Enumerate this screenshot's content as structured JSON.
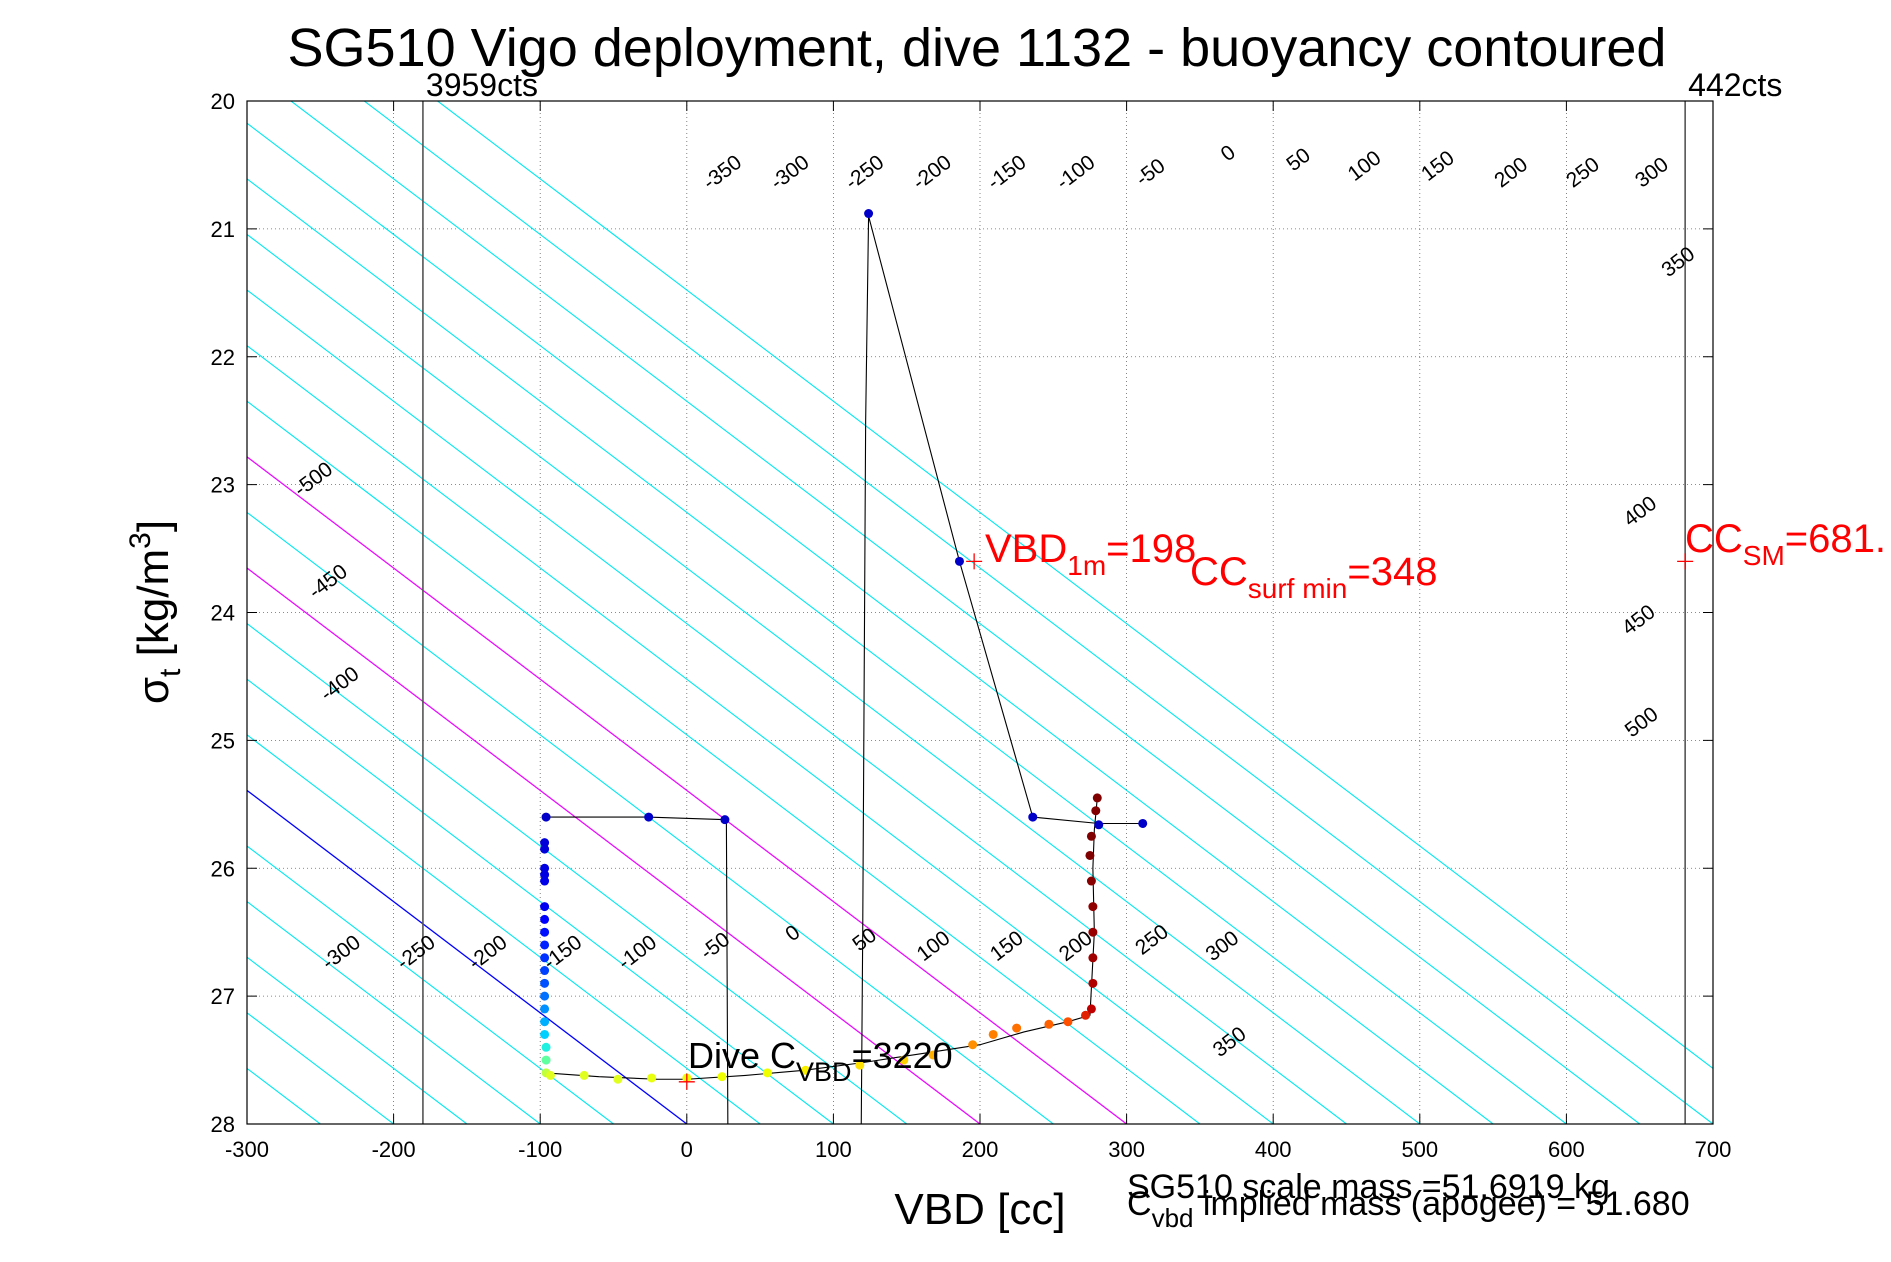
{
  "chart_data": {
    "type": "scatter",
    "title": "SG510 Vigo deployment, dive 1132 - buoyancy contoured",
    "xlabel": "VBD [cc]",
    "ylabel": {
      "main": "σ",
      "sub": "t",
      "units_pre": " [kg/m",
      "units_sup": "3",
      "units_post": "]"
    },
    "xlim": [
      -300,
      700
    ],
    "ylim": [
      20,
      28
    ],
    "y_reversed": true,
    "x_ticks": [
      "-300",
      "-200",
      "-100",
      "0",
      "100",
      "200",
      "300",
      "400",
      "500",
      "600",
      "700"
    ],
    "y_ticks": [
      "20",
      "21",
      "22",
      "23",
      "24",
      "25",
      "26",
      "27",
      "28"
    ],
    "grid": true,
    "contour_slope_cc_per_sigma": 115,
    "cyan_contours": [
      -650,
      -600,
      -550,
      -500,
      -450,
      -400,
      -350,
      -300,
      -250,
      -200,
      -150,
      -100,
      -50,
      50,
      100,
      150,
      200,
      250,
      300,
      350,
      400,
      450,
      500,
      550,
      600,
      650,
      700,
      750
    ],
    "magenta_contours": [
      200,
      300
    ],
    "blue_contour": 0,
    "blue_contour_offset": 0,
    "contour_labels_top": [
      {
        "text": "-350",
        "x": 27,
        "y": 20.6
      },
      {
        "text": "-300",
        "x": 73,
        "y": 20.6
      },
      {
        "text": "-250",
        "x": 124,
        "y": 20.6
      },
      {
        "text": "-200",
        "x": 170,
        "y": 20.6
      },
      {
        "text": "-150",
        "x": 221,
        "y": 20.6
      },
      {
        "text": "-100",
        "x": 268,
        "y": 20.6
      },
      {
        "text": "-50",
        "x": 319,
        "y": 20.6
      },
      {
        "text": "0",
        "x": 372,
        "y": 20.45
      },
      {
        "text": "50",
        "x": 420,
        "y": 20.5
      },
      {
        "text": "100",
        "x": 465,
        "y": 20.55
      },
      {
        "text": "150",
        "x": 515,
        "y": 20.55
      },
      {
        "text": "200",
        "x": 565,
        "y": 20.6
      },
      {
        "text": "250",
        "x": 614,
        "y": 20.6
      },
      {
        "text": "300",
        "x": 661,
        "y": 20.6
      },
      {
        "text": "350",
        "x": 679,
        "y": 21.3
      }
    ],
    "contour_labels_mid": [
      {
        "text": "-500",
        "x": -252,
        "y": 23.0
      },
      {
        "text": "-450",
        "x": -242,
        "y": 23.8
      },
      {
        "text": "-400",
        "x": -234,
        "y": 24.6
      },
      {
        "text": "400",
        "x": 653,
        "y": 23.25
      },
      {
        "text": "450",
        "x": 652,
        "y": 24.1
      },
      {
        "text": "500",
        "x": 654,
        "y": 24.9
      }
    ],
    "contour_labels_bottom": [
      {
        "text": "-300",
        "x": -233,
        "y": 26.7
      },
      {
        "text": "-250",
        "x": -182,
        "y": 26.7
      },
      {
        "text": "-200",
        "x": -133,
        "y": 26.7
      },
      {
        "text": "-150",
        "x": -82,
        "y": 26.7
      },
      {
        "text": "-100",
        "x": -31,
        "y": 26.7
      },
      {
        "text": "-50",
        "x": 22,
        "y": 26.65
      },
      {
        "text": "0",
        "x": 75,
        "y": 26.55
      },
      {
        "text": "50",
        "x": 124,
        "y": 26.6
      },
      {
        "text": "100",
        "x": 171,
        "y": 26.65
      },
      {
        "text": "150",
        "x": 221,
        "y": 26.65
      },
      {
        "text": "200",
        "x": 268,
        "y": 26.65
      },
      {
        "text": "250",
        "x": 320,
        "y": 26.6
      },
      {
        "text": "300",
        "x": 368,
        "y": 26.65
      },
      {
        "text": "350",
        "x": 373,
        "y": 27.4
      }
    ],
    "vertical_lines": [
      {
        "x": -180,
        "label": "3959cts"
      },
      {
        "x": 681,
        "label": "442cts"
      }
    ],
    "black_trace": [
      [
        -97,
        25.6
      ],
      [
        -27,
        25.6
      ],
      [
        27,
        25.62
      ],
      [
        28,
        28
      ]
    ],
    "black_trace2": [
      [
        119,
        28
      ],
      [
        120,
        26.5
      ],
      [
        122,
        22.5
      ],
      [
        124,
        20.9
      ],
      [
        186,
        23.6
      ],
      [
        236,
        25.6
      ],
      [
        281,
        25.65
      ],
      [
        311,
        25.65
      ]
    ],
    "bottom_trace": [
      [
        -97,
        27.6
      ],
      [
        -60,
        27.63
      ],
      [
        -20,
        27.65
      ],
      [
        0,
        27.65
      ],
      [
        40,
        27.62
      ],
      [
        80,
        27.58
      ],
      [
        120,
        27.52
      ],
      [
        160,
        27.45
      ],
      [
        200,
        27.38
      ],
      [
        230,
        27.28
      ],
      [
        260,
        27.2
      ],
      [
        275,
        27.15
      ],
      [
        278,
        26.5
      ],
      [
        277,
        26.0
      ],
      [
        278,
        25.7
      ],
      [
        280,
        25.45
      ]
    ],
    "points": [
      {
        "x": -96,
        "y": 25.6,
        "c": "#0000c8"
      },
      {
        "x": -26,
        "y": 25.6,
        "c": "#0000c8"
      },
      {
        "x": 26,
        "y": 25.62,
        "c": "#0000c8"
      },
      {
        "x": 124,
        "y": 20.88,
        "c": "#0000c8"
      },
      {
        "x": 186,
        "y": 23.6,
        "c": "#0000c8"
      },
      {
        "x": 236,
        "y": 25.6,
        "c": "#0000c8"
      },
      {
        "x": 281,
        "y": 25.66,
        "c": "#0000c8"
      },
      {
        "x": 311,
        "y": 25.65,
        "c": "#0000c8"
      },
      {
        "x": -97,
        "y": 25.8,
        "c": "#0000d8"
      },
      {
        "x": -97,
        "y": 25.85,
        "c": "#0000d8"
      },
      {
        "x": -97,
        "y": 26.0,
        "c": "#0000e0"
      },
      {
        "x": -97,
        "y": 26.05,
        "c": "#0000e0"
      },
      {
        "x": -97,
        "y": 26.1,
        "c": "#0000e8"
      },
      {
        "x": -97,
        "y": 26.3,
        "c": "#0000f0"
      },
      {
        "x": -97,
        "y": 26.4,
        "c": "#0000ff"
      },
      {
        "x": -97,
        "y": 26.5,
        "c": "#0010ff"
      },
      {
        "x": -97,
        "y": 26.6,
        "c": "#0020ff"
      },
      {
        "x": -97,
        "y": 26.7,
        "c": "#0030ff"
      },
      {
        "x": -97,
        "y": 26.8,
        "c": "#0040ff"
      },
      {
        "x": -97,
        "y": 26.9,
        "c": "#0050ff"
      },
      {
        "x": -97,
        "y": 27.0,
        "c": "#0070ff"
      },
      {
        "x": -97,
        "y": 27.1,
        "c": "#0090ff"
      },
      {
        "x": -97,
        "y": 27.2,
        "c": "#00b0ff"
      },
      {
        "x": -97,
        "y": 27.3,
        "c": "#00d0ff"
      },
      {
        "x": -96,
        "y": 27.4,
        "c": "#20f0e0"
      },
      {
        "x": -96,
        "y": 27.5,
        "c": "#60ffa0"
      },
      {
        "x": -96,
        "y": 27.6,
        "c": "#c0ff40"
      },
      {
        "x": -93,
        "y": 27.62,
        "c": "#e0ff20"
      },
      {
        "x": -70,
        "y": 27.62,
        "c": "#e0ff20"
      },
      {
        "x": -47,
        "y": 27.65,
        "c": "#e0ff20"
      },
      {
        "x": -24,
        "y": 27.64,
        "c": "#e8ff10"
      },
      {
        "x": 0,
        "y": 27.64,
        "c": "#f0ff00"
      },
      {
        "x": 24,
        "y": 27.63,
        "c": "#f0ff00"
      },
      {
        "x": 55,
        "y": 27.6,
        "c": "#f0ff00"
      },
      {
        "x": 81,
        "y": 27.58,
        "c": "#f8f000"
      },
      {
        "x": 118,
        "y": 27.54,
        "c": "#ffe000"
      },
      {
        "x": 148,
        "y": 27.5,
        "c": "#ffd000"
      },
      {
        "x": 168,
        "y": 27.46,
        "c": "#ffb000"
      },
      {
        "x": 195,
        "y": 27.38,
        "c": "#ff9000"
      },
      {
        "x": 209,
        "y": 27.3,
        "c": "#ff8000"
      },
      {
        "x": 225,
        "y": 27.25,
        "c": "#ff7000"
      },
      {
        "x": 247,
        "y": 27.22,
        "c": "#ff6000"
      },
      {
        "x": 260,
        "y": 27.2,
        "c": "#ff5000"
      },
      {
        "x": 272,
        "y": 27.15,
        "c": "#e02000"
      },
      {
        "x": 276,
        "y": 27.1,
        "c": "#c00000"
      },
      {
        "x": 277,
        "y": 26.9,
        "c": "#b00000"
      },
      {
        "x": 277,
        "y": 26.7,
        "c": "#a00000"
      },
      {
        "x": 277,
        "y": 26.5,
        "c": "#980000"
      },
      {
        "x": 277,
        "y": 26.3,
        "c": "#900000"
      },
      {
        "x": 276,
        "y": 26.1,
        "c": "#880000"
      },
      {
        "x": 275,
        "y": 25.9,
        "c": "#800000"
      },
      {
        "x": 276,
        "y": 25.75,
        "c": "#800000"
      },
      {
        "x": 279,
        "y": 25.55,
        "c": "#800000"
      },
      {
        "x": 280,
        "y": 25.45,
        "c": "#800000"
      }
    ],
    "red_markers": [
      {
        "x": 196,
        "y": 23.6
      },
      {
        "x": 681,
        "y": 23.6
      },
      {
        "x": 0,
        "y": 27.67
      }
    ],
    "annotations": {
      "vbd1m": {
        "main": "VBD",
        "sub": "1m",
        "post": "=198"
      },
      "ccsurf": {
        "main": "CC",
        "sub": "surf min",
        "post": "=348"
      },
      "ccsm": {
        "main": "CC",
        "sub": "SM",
        "post": "=681."
      },
      "divec": {
        "pre": "Dive C",
        "sub": "VBD",
        "post": "=3220"
      },
      "scale_mass": "SG510 scale mass =51.6919 kg",
      "cvbd_mass": {
        "main": "C",
        "sub": "vbd",
        "post": " implied mass (apogee) = 51.680"
      }
    }
  }
}
